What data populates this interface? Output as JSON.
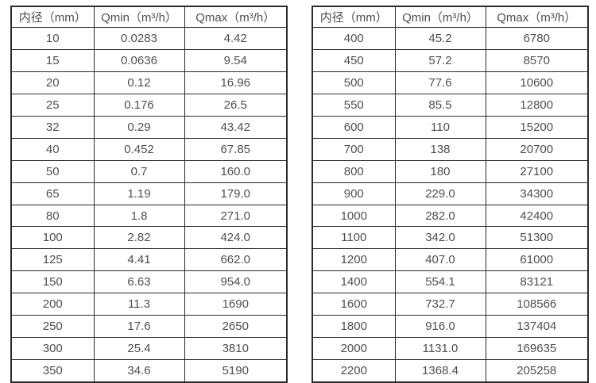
{
  "colors": {
    "border": "#2b2b2b",
    "text": "#4f4f4f",
    "background": "#ffffff"
  },
  "tables": [
    {
      "name": "flow-range-small-diameters",
      "headers": [
        "内径（mm）",
        "Qmin（m³/h）",
        "Qmax（m³/h）"
      ],
      "rows": [
        [
          "10",
          "0.0283",
          "4.42"
        ],
        [
          "15",
          "0.0636",
          "9.54"
        ],
        [
          "20",
          "0.12",
          "16.96"
        ],
        [
          "25",
          "0.176",
          "26.5"
        ],
        [
          "32",
          "0.29",
          "43.42"
        ],
        [
          "40",
          "0.452",
          "67.85"
        ],
        [
          "50",
          "0.7",
          "160.0"
        ],
        [
          "65",
          "1.19",
          "179.0"
        ],
        [
          "80",
          "1.8",
          "271.0"
        ],
        [
          "100",
          "2.82",
          "424.0"
        ],
        [
          "125",
          "4.41",
          "662.0"
        ],
        [
          "150",
          "6.63",
          "954.0"
        ],
        [
          "200",
          "11.3",
          "1690"
        ],
        [
          "250",
          "17.6",
          "2650"
        ],
        [
          "300",
          "25.4",
          "3810"
        ],
        [
          "350",
          "34.6",
          "5190"
        ]
      ]
    },
    {
      "name": "flow-range-large-diameters",
      "headers": [
        "内径（mm）",
        "Qmin（m³/h）",
        "Qmax（m³/h）"
      ],
      "rows": [
        [
          "400",
          "45.2",
          "6780"
        ],
        [
          "450",
          "57.2",
          "8570"
        ],
        [
          "500",
          "77.6",
          "10600"
        ],
        [
          "550",
          "85.5",
          "12800"
        ],
        [
          "600",
          "110",
          "15200"
        ],
        [
          "700",
          "138",
          "20700"
        ],
        [
          "800",
          "180",
          "27100"
        ],
        [
          "900",
          "229.0",
          "34300"
        ],
        [
          "1000",
          "282.0",
          "42400"
        ],
        [
          "1100",
          "342.0",
          "51300"
        ],
        [
          "1200",
          "407.0",
          "61000"
        ],
        [
          "1400",
          "554.1",
          "83121"
        ],
        [
          "1600",
          "732.7",
          "108566"
        ],
        [
          "1800",
          "916.0",
          "137404"
        ],
        [
          "2000",
          "1131.0",
          "169635"
        ],
        [
          "2200",
          "1368.4",
          "205258"
        ]
      ]
    }
  ]
}
